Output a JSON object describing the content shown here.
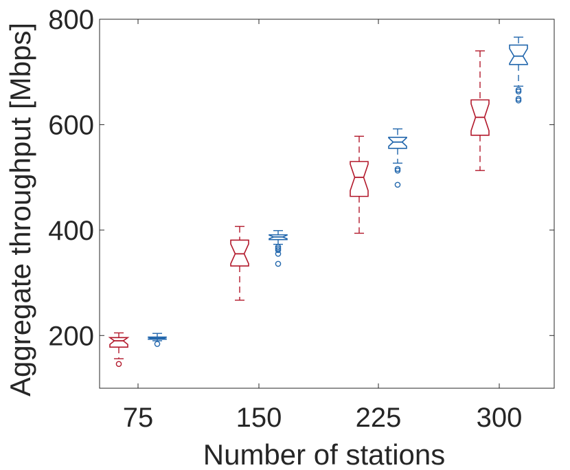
{
  "chart_data": {
    "type": "boxplot",
    "xlabel": "Number of stations",
    "ylabel": "Aggregate throughput [Mbps]",
    "categories": [
      "75",
      "150",
      "225",
      "300"
    ],
    "ylim": [
      100,
      800
    ],
    "yticks": [
      200,
      400,
      600,
      800
    ],
    "grid": false,
    "notched": true,
    "series": [
      {
        "color": "#b2182b",
        "boxes": [
          {
            "category": "75",
            "whisker_low": 156,
            "q1": 178,
            "median": 190,
            "q3": 196,
            "whisker_high": 205,
            "outliers": [
              146
            ]
          },
          {
            "category": "150",
            "whisker_low": 267,
            "q1": 332,
            "median": 355,
            "q3": 381,
            "whisker_high": 407,
            "outliers": []
          },
          {
            "category": "225",
            "whisker_low": 394,
            "q1": 464,
            "median": 500,
            "q3": 530,
            "whisker_high": 578,
            "outliers": []
          },
          {
            "category": "300",
            "whisker_low": 513,
            "q1": 580,
            "median": 614,
            "q3": 647,
            "whisker_high": 740,
            "outliers": []
          }
        ]
      },
      {
        "color": "#2166ac",
        "boxes": [
          {
            "category": "75",
            "whisker_low": 190,
            "q1": 193,
            "median": 195,
            "q3": 197,
            "whisker_high": 204,
            "outliers": [
              184
            ]
          },
          {
            "category": "150",
            "whisker_low": 373,
            "q1": 382,
            "median": 387,
            "q3": 391,
            "whisker_high": 399,
            "outliers": [
              368,
              365,
              362,
              355,
              336
            ]
          },
          {
            "category": "225",
            "whisker_low": 527,
            "q1": 555,
            "median": 567,
            "q3": 576,
            "whisker_high": 592,
            "outliers": [
              516,
              513,
              486
            ]
          },
          {
            "category": "300",
            "whisker_low": 673,
            "q1": 714,
            "median": 730,
            "q3": 751,
            "whisker_high": 766,
            "outliers": [
              666,
              663,
              649,
              646
            ]
          }
        ]
      }
    ]
  }
}
